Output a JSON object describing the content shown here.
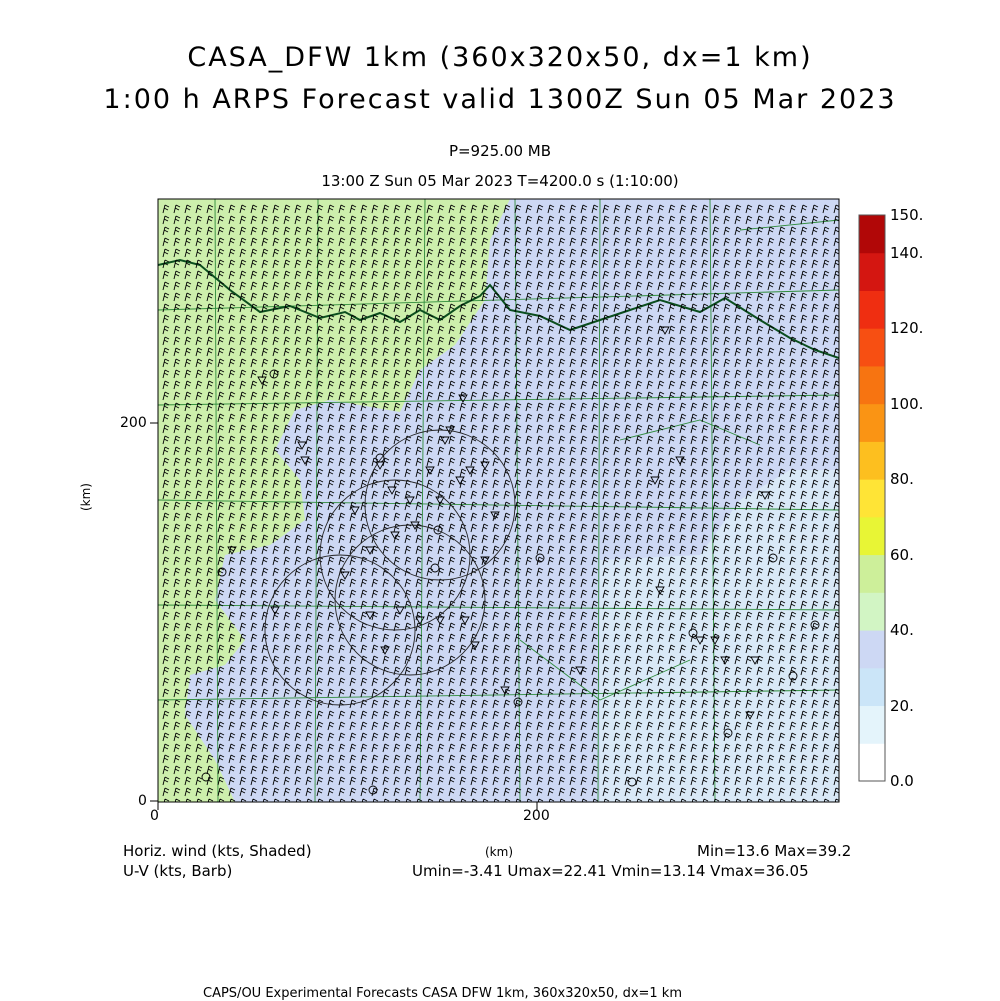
{
  "title_line1": "CASA_DFW 1km (360x320x50, dx=1 km)",
  "title_line2": "1:00 h ARPS Forecast valid 1300Z Sun 05 Mar 2023",
  "level": "P=925.00 MB",
  "time_line": "13:00 Z Sun 05 Mar 2023   T=4200.0 s (1:10:00)",
  "x_axis": {
    "label": "(km)",
    "ticks": [
      "0",
      "200"
    ]
  },
  "y_axis": {
    "label": "(km)",
    "ticks": [
      "0",
      "200"
    ]
  },
  "colorbar": {
    "labels": [
      "150.",
      "140.",
      "120.",
      "100.",
      "80.",
      "60.",
      "40.",
      "20.",
      "0.0"
    ],
    "colors": [
      "#ffffff",
      "#e4f4fb",
      "#cbe5f8",
      "#cdd8f4",
      "#d2f5c4",
      "#cdef9a",
      "#e8f535",
      "#ffe436",
      "#fdbf1f",
      "#fa9414",
      "#f77411",
      "#f74f12",
      "#ef2e11",
      "#d41611",
      "#b10707"
    ]
  },
  "shading": {
    "low_color": "#cdd8f4",
    "high_color": "#cdefac",
    "light_color": "#d9e9f7"
  },
  "legend_left": {
    "line1": "Horiz. wind (kts, Shaded)",
    "line2": "U-V (kts, Barb)"
  },
  "legend_right": {
    "line1": "Min=13.6 Max=39.2",
    "line2": "Umin=-3.41 Umax=22.41 Vmin=13.14 Vmax=36.05"
  },
  "footer": "CAPS/OU Experimental Forecasts  CASA DFW 1km, 360x320x50, dx=1 km"
}
